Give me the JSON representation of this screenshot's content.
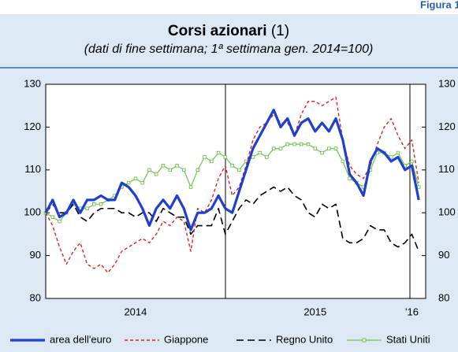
{
  "figure_label": "Figura 1",
  "chart_data": {
    "type": "line",
    "title": "Corsi azionari",
    "title_note": "(1)",
    "subtitle": "(dati di fine settimana; 1ª settimana gen. 2014=100)",
    "categories": [
      null,
      null,
      null,
      null,
      null,
      null,
      null,
      null,
      null,
      null,
      null,
      null,
      null,
      "2014",
      null,
      null,
      null,
      null,
      null,
      null,
      null,
      null,
      null,
      null,
      null,
      null,
      null,
      null,
      null,
      null,
      null,
      null,
      null,
      null,
      null,
      null,
      null,
      null,
      null,
      "2015",
      null,
      null,
      null,
      null,
      null,
      null,
      null,
      null,
      null,
      null,
      null,
      null,
      null,
      "'16",
      null
    ],
    "ylim": [
      80,
      130
    ],
    "yticks": [
      80,
      90,
      100,
      110,
      120,
      130
    ],
    "y2ticks": [
      80,
      90,
      100,
      110,
      120,
      130
    ],
    "grid": false,
    "series": [
      {
        "name": "area dell'euro",
        "color": "#1f3fd0",
        "style": "solid",
        "values": [
          100,
          103,
          99,
          100,
          103,
          100,
          103,
          103,
          104,
          103,
          103,
          107,
          106,
          104,
          101,
          97,
          101,
          103,
          101,
          104,
          101,
          96,
          100,
          100,
          101,
          104,
          101,
          100,
          105,
          110,
          115,
          118,
          121,
          124,
          120,
          122,
          118,
          121,
          122,
          119,
          121,
          119,
          122,
          117,
          109,
          107,
          104,
          112,
          115,
          114,
          112,
          113,
          110,
          111,
          103
        ]
      },
      {
        "name": "Giappone",
        "color": "#e0201b",
        "style": "dashed",
        "values": [
          100,
          97,
          92,
          88,
          91,
          93,
          88,
          87,
          88,
          86,
          88,
          91,
          92,
          93,
          94,
          93,
          95,
          98,
          97,
          99,
          98,
          91,
          101,
          100,
          103,
          108,
          111,
          104,
          106,
          111,
          117,
          120,
          121,
          123,
          121,
          121,
          118,
          123,
          126,
          126,
          125,
          126,
          127,
          117,
          111,
          109,
          108,
          111,
          116,
          120,
          122,
          118,
          115,
          117,
          107
        ]
      },
      {
        "name": "Regno Unito",
        "color": "#000000",
        "style": "longdash",
        "values": [
          100,
          102,
          100,
          100,
          102,
          99,
          98,
          100,
          101,
          101,
          101,
          100,
          100,
          99,
          100,
          100,
          98,
          101,
          100,
          99,
          99,
          95,
          97,
          97,
          97,
          101,
          95,
          98,
          101,
          103,
          102,
          104,
          105,
          106,
          105,
          106,
          104,
          103,
          100,
          99,
          102,
          101,
          102,
          94,
          93,
          93,
          94,
          97,
          96,
          96,
          93,
          92,
          93,
          95,
          91
        ]
      },
      {
        "name": "Stati Uniti",
        "color": "#6cc24a",
        "style": "markers",
        "values": [
          100,
          99,
          98,
          100,
          102,
          101,
          101,
          102,
          102,
          103,
          104,
          106,
          107,
          108,
          107,
          110,
          109,
          111,
          110,
          111,
          110,
          106,
          110,
          113,
          112,
          114,
          113,
          111,
          110,
          112,
          113,
          114,
          113,
          115,
          115,
          116,
          116,
          116,
          116,
          115,
          114,
          115,
          115,
          112,
          108,
          107,
          106,
          110,
          114,
          114,
          113,
          114,
          111,
          112,
          106
        ]
      }
    ]
  }
}
